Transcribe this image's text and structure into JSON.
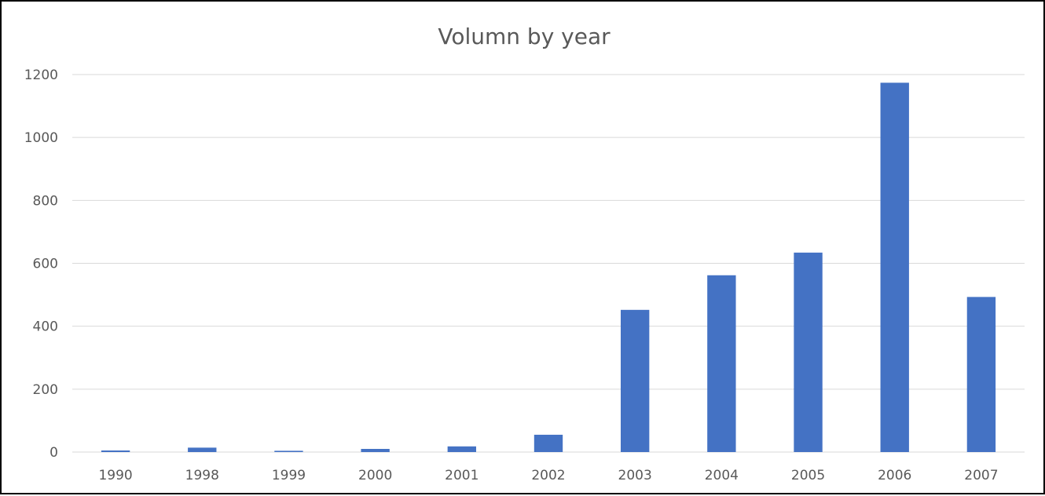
{
  "chart_data": {
    "type": "bar",
    "title": "Volumn by year",
    "xlabel": "",
    "ylabel": "",
    "categories": [
      "1990",
      "1998",
      "1999",
      "2000",
      "2001",
      "2002",
      "2003",
      "2004",
      "2005",
      "2006",
      "2007"
    ],
    "values": [
      5,
      14,
      4,
      10,
      18,
      55,
      452,
      562,
      634,
      1174,
      493
    ],
    "ylim": [
      0,
      1200
    ],
    "yticks": [
      0,
      200,
      400,
      600,
      800,
      1000,
      1200
    ],
    "grid": true,
    "legend": "none",
    "bar_color": "#4472C4"
  }
}
